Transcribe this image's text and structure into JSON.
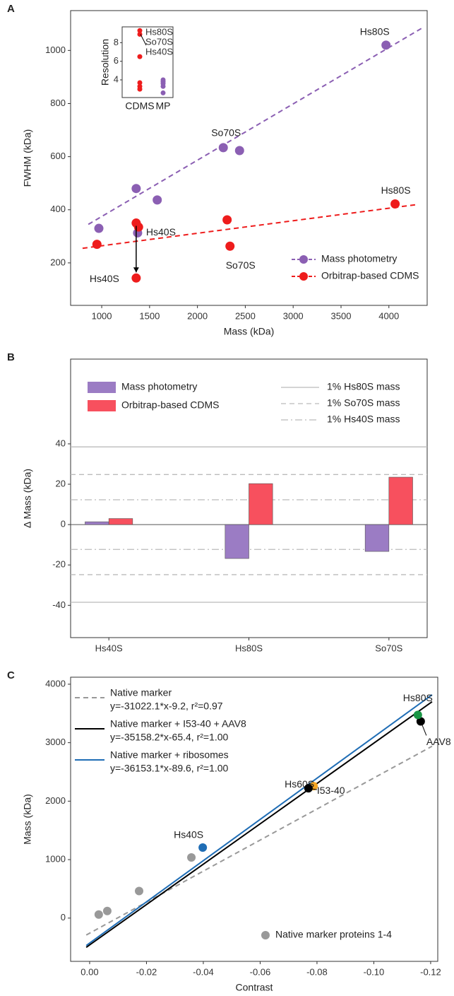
{
  "chart_data": [
    {
      "type": "scatter",
      "panel_label": "A",
      "xlabel": "Mass (kDa)",
      "ylabel": "FWHM (kDa)",
      "xlim": [
        675,
        4400
      ],
      "xticks": [
        1000,
        1500,
        2000,
        2500,
        3000,
        3500,
        4000
      ],
      "ylim": [
        40,
        1150
      ],
      "yticks": [
        200,
        400,
        600,
        800,
        1000
      ],
      "legend": "bottom-right",
      "series": [
        {
          "name": "Mass photometry",
          "color": "#8b5fb3",
          "x": [
            970,
            1360,
            1580,
            2270,
            2440,
            1375,
            3970
          ],
          "values": [
            330,
            480,
            437,
            634,
            623,
            313,
            1020
          ],
          "labels": [
            null,
            null,
            null,
            "So70S",
            null,
            "Hs40S",
            "Hs80S"
          ],
          "fit": {
            "x": [
              860,
              4350
            ],
            "values": [
              345,
              1085
            ]
          }
        },
        {
          "name": "Orbitrap-based CDMS",
          "color": "#ee1c1c",
          "x": [
            950,
            1360,
            1385,
            1360,
            2310,
            2340,
            4065
          ],
          "values": [
            270,
            350,
            335,
            143,
            362,
            263,
            422
          ],
          "labels": [
            null,
            null,
            null,
            "Hs40S",
            null,
            "So70S",
            "Hs80S"
          ],
          "fit": {
            "x": [
              800,
              4300
            ],
            "values": [
              255,
              420
            ]
          }
        }
      ],
      "inset": {
        "ylabel": "Resolution",
        "categories": [
          "CDMS",
          "MP"
        ],
        "ylim": [
          2.1,
          9.7
        ],
        "yticks": [
          4,
          6,
          8
        ],
        "annotations": [
          "Hs80S",
          "So70S",
          "Hs40S"
        ],
        "series": [
          {
            "color": "#ee1c1c",
            "values": [
              9.3,
              8.9,
              6.5,
              3.7,
              3.3,
              3.0
            ]
          },
          {
            "color": "#8b5fb3",
            "values": [
              4.0,
              3.8,
              3.6,
              3.3,
              2.6
            ]
          }
        ]
      }
    },
    {
      "type": "bar",
      "panel_label": "B",
      "ylabel": "Δ Mass (kDa)",
      "categories": [
        "Hs40S",
        "Hs80S",
        "So70S"
      ],
      "series": [
        {
          "name": "Mass photometry",
          "color": "#9b7cc4",
          "values": [
            1.4,
            -16.8,
            -13.3
          ]
        },
        {
          "name": "Orbitrap-based CDMS",
          "color": "#f7505e",
          "values": [
            3.0,
            20.3,
            23.5
          ]
        }
      ],
      "ylim": [
        -56,
        82
      ],
      "yticks": [
        -40,
        -20,
        0,
        20,
        40
      ],
      "reference_lines": [
        {
          "name": "1% Hs80S mass",
          "value": 38.5,
          "dash": "solid"
        },
        {
          "name": "1% So70S mass",
          "value": 24.8,
          "dash": "dashed"
        },
        {
          "name": "1% Hs40S mass",
          "value": 12.3,
          "dash": "dotdash"
        }
      ]
    },
    {
      "type": "scatter",
      "panel_label": "C",
      "xlabel": "Contrast",
      "ylabel": "Mass (kDa)",
      "xlim": [
        0.0067,
        -0.1225
      ],
      "xticks": [
        {
          "value": 0,
          "label": "0.00"
        },
        {
          "value": -0.02,
          "label": "-0.02"
        },
        {
          "value": -0.04,
          "label": "-0.04"
        },
        {
          "value": -0.06,
          "label": "-0.06"
        },
        {
          "value": -0.08,
          "label": "-0.08"
        },
        {
          "value": -0.1,
          "label": "-0.10"
        },
        {
          "value": -0.12,
          "label": "-0.12"
        }
      ],
      "ylim": [
        -740,
        4120
      ],
      "yticks": [
        0,
        1000,
        2000,
        3000,
        4000
      ],
      "legend": "bottom-right",
      "fits": [
        {
          "name": "Native marker",
          "equation": "y=-31022.1*x-9.2, r²=0.97",
          "color": "#999999",
          "dash": "dashed",
          "x": [
            0.0012,
            -0.1205
          ],
          "values": [
            -290,
            2940
          ]
        },
        {
          "name": "Native marker + I53-40 + AAV8",
          "equation": "y=-35158.2*x-65.4, r²=1.00",
          "color": "#000000",
          "dash": "solid",
          "x": [
            0.0012,
            -0.1205
          ],
          "values": [
            -500,
            3700
          ]
        },
        {
          "name": "Native marker + ribosomes",
          "equation": "y=-36153.1*x-89.6, r²=1.00",
          "color": "#1f6db5",
          "dash": "solid",
          "x": [
            0.0012,
            -0.1205
          ],
          "values": [
            -470,
            3820
          ]
        }
      ],
      "series": [
        {
          "name": "Native marker proteins 1-4",
          "color": "#999999",
          "x": [
            -0.0032,
            -0.0062,
            -0.0174,
            -0.0358
          ],
          "values": [
            61,
            122,
            463,
            1037
          ]
        },
        {
          "color": "#1f6db5",
          "x": [
            -0.0398
          ],
          "values": [
            1207
          ],
          "labels": [
            "Hs40S"
          ]
        },
        {
          "color": "#f5a623",
          "x": [
            -0.0788
          ],
          "values": [
            2256
          ],
          "labels": [
            "Hs60S"
          ]
        },
        {
          "color": "#000000",
          "x": [
            -0.077,
            -0.1165
          ],
          "values": [
            2220,
            3365
          ],
          "labels": [
            "I53-40",
            "AAV8"
          ]
        },
        {
          "color": "#1a9645",
          "x": [
            -0.1155
          ],
          "values": [
            3475
          ],
          "labels": [
            "Hs80S"
          ]
        }
      ]
    }
  ]
}
